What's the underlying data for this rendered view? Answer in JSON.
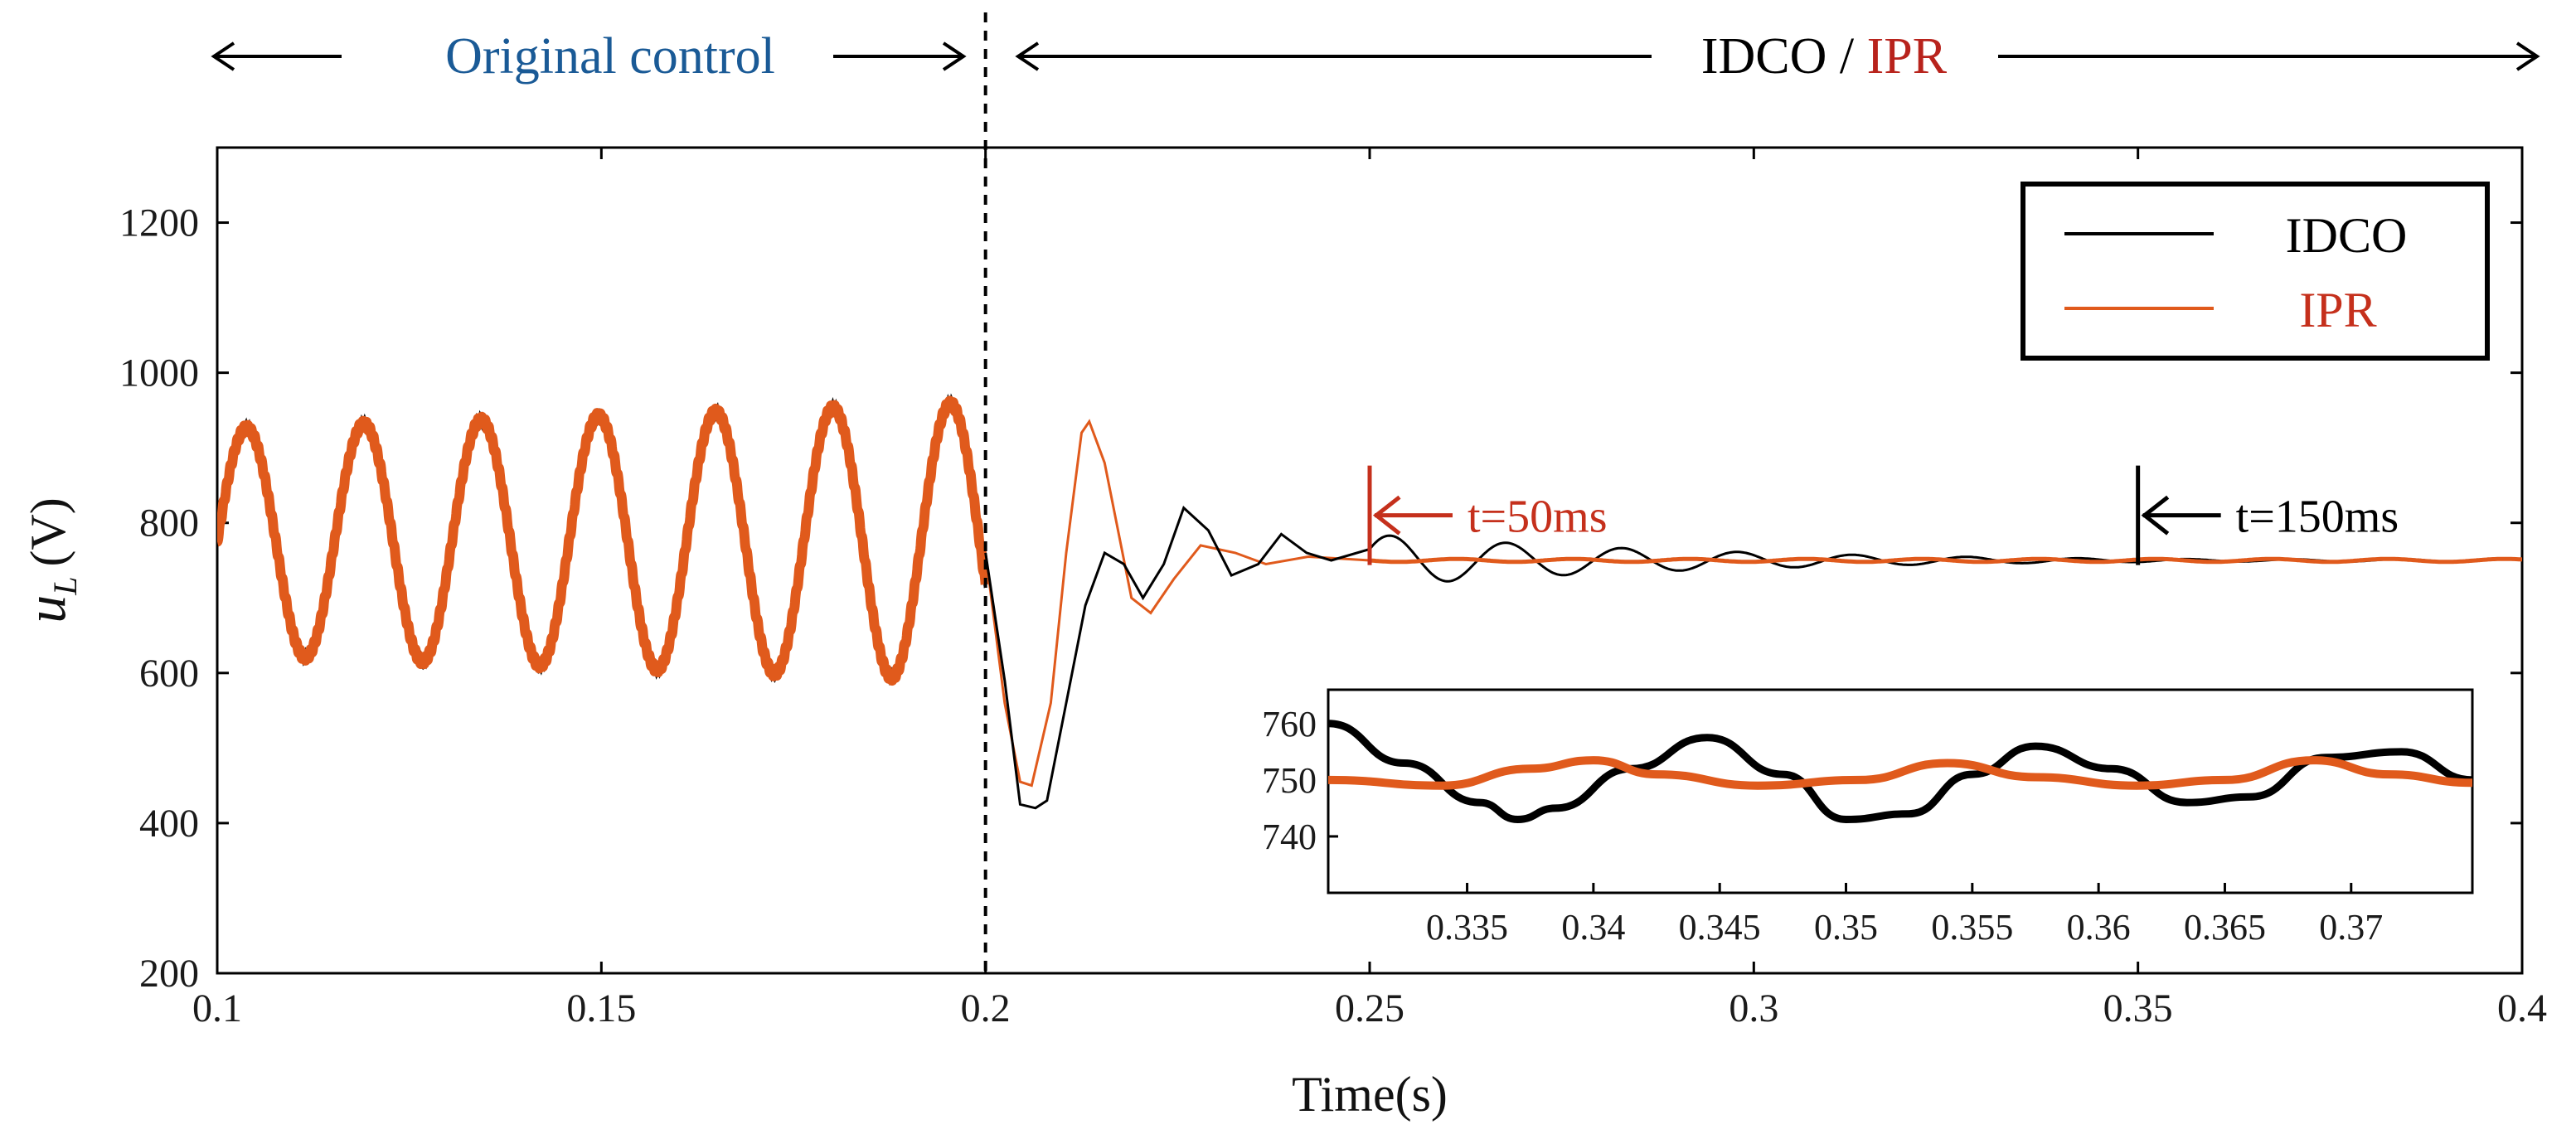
{
  "chart_data": {
    "type": "line",
    "title": "",
    "xlabel": "Time(s)",
    "ylabel_main": "u",
    "ylabel_sub": "L",
    "ylabel_unit": "(V)",
    "xlim": [
      0.1,
      0.4
    ],
    "ylim": [
      200,
      1300
    ],
    "xticks": [
      0.1,
      0.15,
      0.2,
      0.25,
      0.3,
      0.35,
      0.4
    ],
    "xtick_labels": [
      "0.1",
      "0.15",
      "0.2",
      "0.25",
      "0.3",
      "0.35",
      "0.4"
    ],
    "yticks": [
      200,
      400,
      600,
      800,
      1000,
      1200
    ],
    "ytick_labels": [
      "200",
      "400",
      "600",
      "800",
      "1000",
      "1200"
    ],
    "grid": false,
    "legend": {
      "position": "top-right",
      "entries": [
        {
          "name": "IDCO",
          "color": "#000000"
        },
        {
          "name": "IPR",
          "color": "#e05a1c"
        }
      ]
    },
    "switch_time": 0.2,
    "original_signal": {
      "offset": 775,
      "start_amplitude": 150,
      "end_amplitude": 185,
      "frequency_hz": 65.5,
      "ripple_band": 18
    },
    "series": [
      {
        "name": "IDCO",
        "color": "#000000",
        "transient_points": [
          [
            0.2,
            760
          ],
          [
            0.2025,
            590
          ],
          [
            0.2045,
            425
          ],
          [
            0.2065,
            420
          ],
          [
            0.208,
            430
          ],
          [
            0.2105,
            560
          ],
          [
            0.213,
            690
          ],
          [
            0.2155,
            760
          ],
          [
            0.218,
            745
          ],
          [
            0.2205,
            700
          ],
          [
            0.2232,
            745
          ],
          [
            0.2258,
            820
          ],
          [
            0.229,
            790
          ],
          [
            0.232,
            730
          ],
          [
            0.2355,
            745
          ],
          [
            0.2385,
            785
          ],
          [
            0.2418,
            760
          ],
          [
            0.245,
            750
          ],
          [
            0.25,
            765
          ]
        ],
        "steady_value": 750,
        "tail": {
          "amplitude": 35,
          "frequency_hz": 66,
          "decay_time_constant_s": 0.05
        }
      },
      {
        "name": "IPR",
        "color": "#e05a1c",
        "transient_points": [
          [
            0.2,
            760
          ],
          [
            0.2025,
            560
          ],
          [
            0.2045,
            455
          ],
          [
            0.206,
            450
          ],
          [
            0.2085,
            560
          ],
          [
            0.2105,
            760
          ],
          [
            0.2125,
            920
          ],
          [
            0.2135,
            935
          ],
          [
            0.2155,
            880
          ],
          [
            0.219,
            700
          ],
          [
            0.2215,
            680
          ],
          [
            0.2245,
            725
          ],
          [
            0.228,
            770
          ],
          [
            0.2325,
            760
          ],
          [
            0.2365,
            745
          ],
          [
            0.242,
            755
          ],
          [
            0.25,
            750
          ]
        ],
        "steady_value": 750,
        "tail": {
          "amplitude": 6,
          "frequency_hz": 66,
          "decay_time_constant_s": 0.06
        }
      }
    ],
    "annotations": [
      {
        "text": "t=50ms",
        "x": 0.25,
        "y": 810,
        "color": "#c5301c"
      },
      {
        "text": "t=150ms",
        "x": 0.35,
        "y": 810,
        "color": "#000000"
      }
    ],
    "top_labels": {
      "original": "Original control",
      "idco": "IDCO",
      "separator": " / ",
      "ipr": "IPR"
    },
    "inset": {
      "xlim": [
        0.3295,
        0.3748
      ],
      "ylim": [
        730,
        766
      ],
      "xticks": [
        0.335,
        0.34,
        0.345,
        0.35,
        0.355,
        0.36,
        0.365,
        0.37
      ],
      "xtick_labels": [
        "0.335",
        "0.34",
        "0.345",
        "0.35",
        "0.355",
        "0.36",
        "0.365",
        "0.37"
      ],
      "yticks": [
        740,
        750,
        760
      ],
      "ytick_labels": [
        "740",
        "750",
        "760"
      ],
      "series": [
        {
          "name": "IDCO",
          "color": "#000000",
          "points": [
            [
              0.3295,
              760
            ],
            [
              0.3325,
              753
            ],
            [
              0.3355,
              746
            ],
            [
              0.337,
              743
            ],
            [
              0.3385,
              745
            ],
            [
              0.3415,
              752
            ],
            [
              0.3445,
              757.5
            ],
            [
              0.3475,
              751
            ],
            [
              0.35,
              743
            ],
            [
              0.3525,
              744
            ],
            [
              0.355,
              751
            ],
            [
              0.3575,
              756
            ],
            [
              0.3605,
              752
            ],
            [
              0.3635,
              746
            ],
            [
              0.366,
              747
            ],
            [
              0.369,
              754
            ],
            [
              0.372,
              755
            ],
            [
              0.3748,
              750
            ]
          ]
        },
        {
          "name": "IPR",
          "color": "#e05a1c",
          "points": [
            [
              0.3295,
              750
            ],
            [
              0.334,
              749
            ],
            [
              0.3375,
              752
            ],
            [
              0.34,
              753.5
            ],
            [
              0.3425,
              751
            ],
            [
              0.3465,
              749
            ],
            [
              0.3505,
              750
            ],
            [
              0.354,
              753
            ],
            [
              0.3575,
              750.5
            ],
            [
              0.3615,
              749
            ],
            [
              0.365,
              750
            ],
            [
              0.3685,
              753.5
            ],
            [
              0.3715,
              751
            ],
            [
              0.3748,
              749.5
            ]
          ]
        }
      ]
    }
  }
}
